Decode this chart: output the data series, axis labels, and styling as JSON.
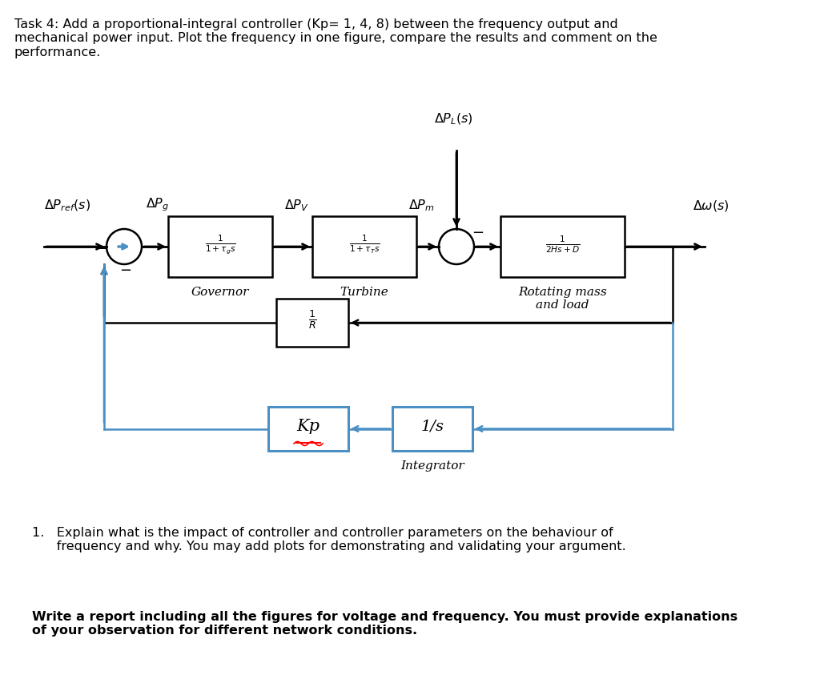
{
  "title_text": "Task 4: Add a proportional-integral controller (Kp= 1, 4, 8) between the frequency output and\nmechanical power input. Plot the frequency in one figure, compare the results and comment on the\nperformance.",
  "bg_color": "#ffffff",
  "text_color": "#000000",
  "box_edge_color": "#000000",
  "pi_box_edge_color": "#4a90c4",
  "item1_line1": "1.   Explain what is the impact of controller and controller parameters on the behaviour of",
  "item1_line2": "      frequency and why. You may add plots for demonstrating and validating your argument.",
  "bold_text": "Write a report including all the figures for voltage and frequency. You must provide explanations\nof your observation for different network conditions."
}
